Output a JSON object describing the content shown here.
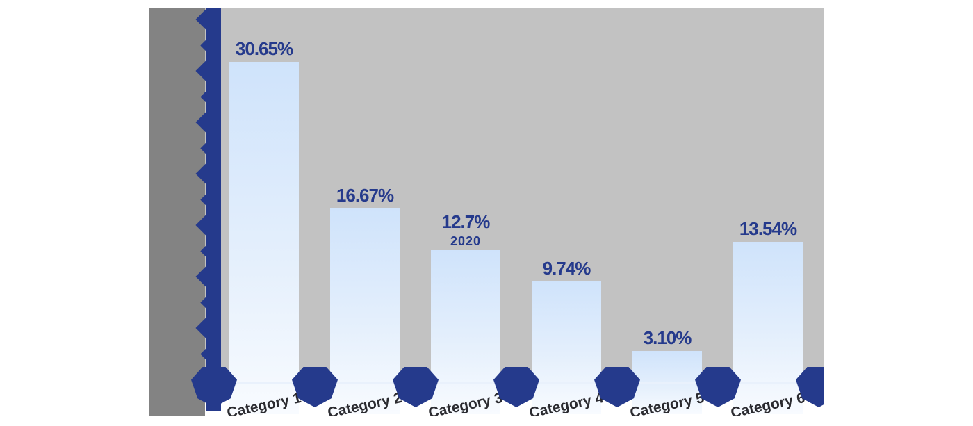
{
  "window": {
    "background": "#ffffff"
  },
  "chart_style": {
    "plot_bg": "#c2c2c2",
    "side_band_bg": "#838383",
    "accent_navy": "#253a8c",
    "bar_fill_top": "#cfe3fb",
    "bar_fill_mid": "#e4effc",
    "bar_fill_bottom": "#f8fbff",
    "baseline_color": "#e9f1fc",
    "category_label_color": "#2b2b30"
  },
  "chart_data": {
    "type": "bar",
    "title": "",
    "xlabel": "",
    "ylabel": "",
    "categories": [
      "Category 1",
      "Category 2",
      "Category 3",
      "Category 4",
      "Category 5",
      "Category 6"
    ],
    "values": [
      30.65,
      16.67,
      12.7,
      9.74,
      3.1,
      13.54
    ],
    "value_labels": [
      "30.65%",
      "16.67%",
      "12.7%",
      "9.74%",
      "3.10%",
      "13.54%"
    ],
    "annotations": [
      {
        "category_index": 2,
        "text": "2020"
      }
    ],
    "ylim": [
      0,
      36
    ],
    "y_axis_numeric_labels_visible": false,
    "y_tick_count": 15,
    "grid": false,
    "legend": "none",
    "axis_node_marker_count": 7
  }
}
